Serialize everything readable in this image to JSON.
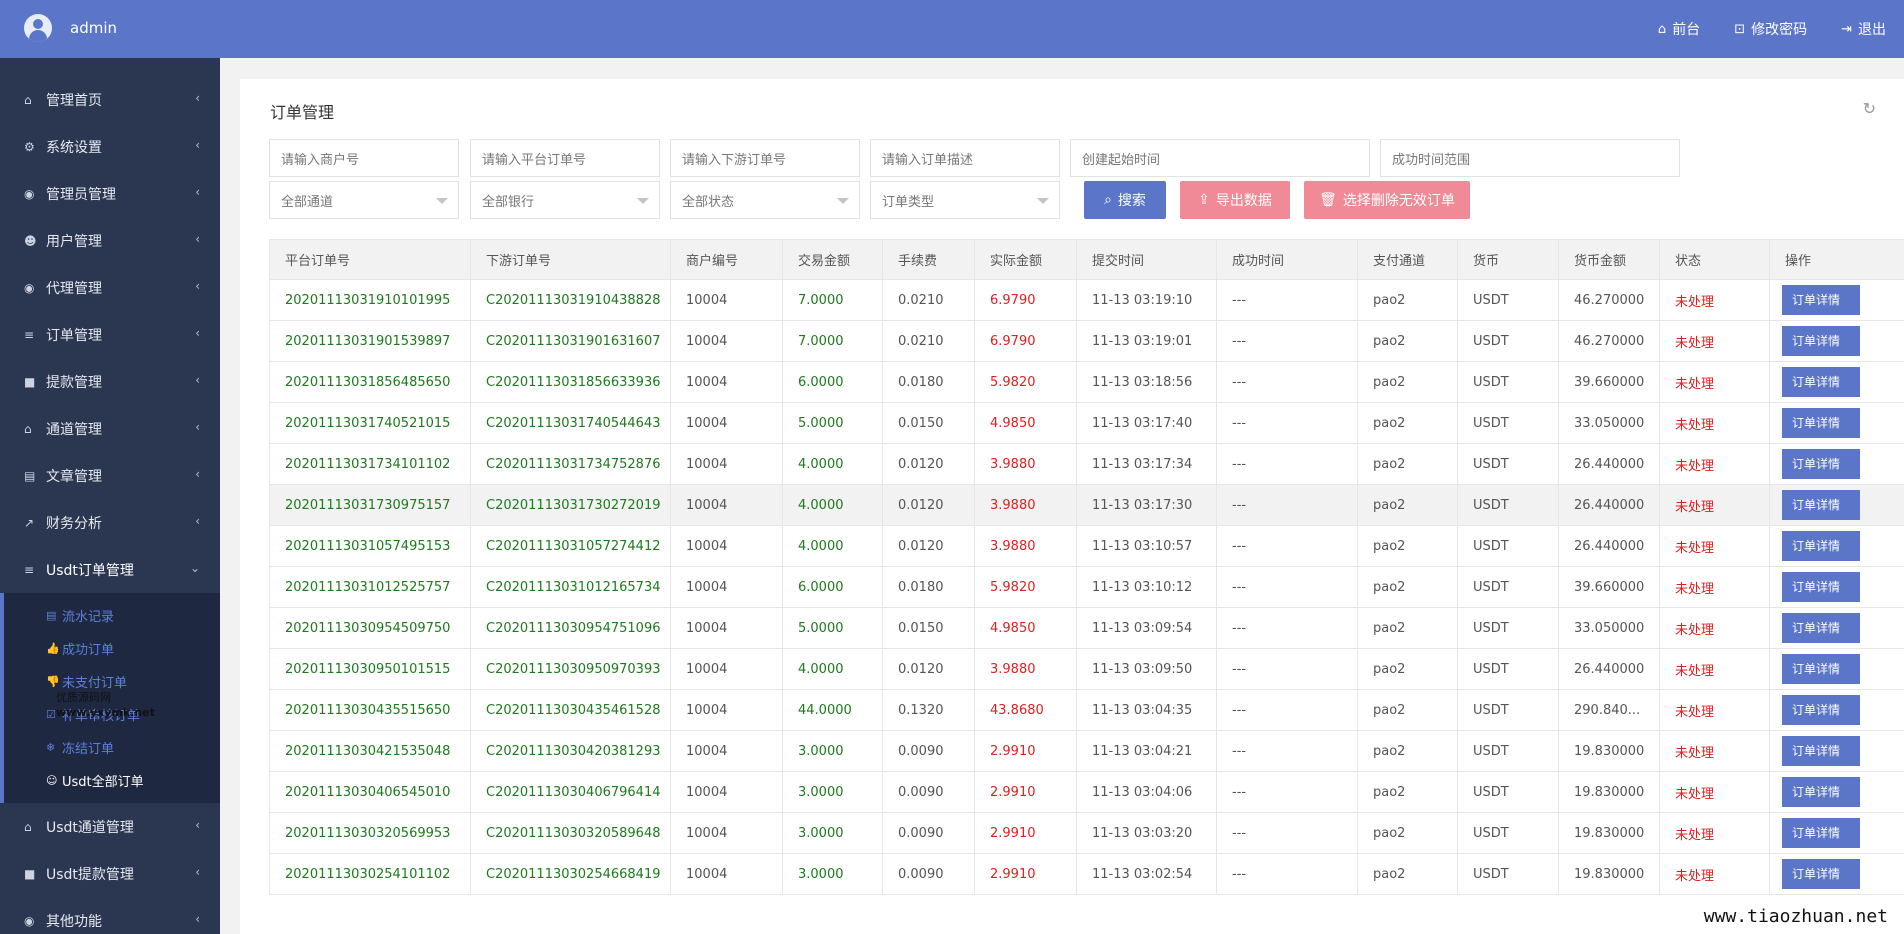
{
  "topbar": {
    "username": "admin",
    "links": [
      {
        "icon": "home-icon",
        "glyph": "⌂",
        "label": "前台"
      },
      {
        "icon": "lock-icon",
        "glyph": "🔒",
        "label": "修改密码"
      },
      {
        "icon": "logout-icon",
        "glyph": "⇥",
        "label": "退出"
      }
    ]
  },
  "sidebar": {
    "items": [
      {
        "icon": "home-icon",
        "glyph": "⌂",
        "label": "管理首页"
      },
      {
        "icon": "gears-icon",
        "glyph": "⚙",
        "label": "系统设置"
      },
      {
        "icon": "user-circle-icon",
        "glyph": "◉",
        "label": "管理员管理"
      },
      {
        "icon": "users-icon",
        "glyph": "☻",
        "label": "用户管理"
      },
      {
        "icon": "user-circle-icon",
        "glyph": "◉",
        "label": "代理管理"
      },
      {
        "icon": "list-icon",
        "glyph": "≡",
        "label": "订单管理"
      },
      {
        "icon": "lock-icon",
        "glyph": "■",
        "label": "提款管理"
      },
      {
        "icon": "bank-icon",
        "glyph": "⌂",
        "label": "通道管理"
      },
      {
        "icon": "book-icon",
        "glyph": "▤",
        "label": "文章管理"
      },
      {
        "icon": "chart-icon",
        "glyph": "↗",
        "label": "财务分析"
      }
    ],
    "open_item": {
      "icon": "list-icon",
      "glyph": "≡",
      "label": "Usdt订单管理"
    },
    "submenu": [
      {
        "icon": "list-alt-icon",
        "glyph": "▤",
        "label": "流水记录"
      },
      {
        "icon": "thumbs-up-icon",
        "glyph": "👍",
        "label": "成功订单"
      },
      {
        "icon": "thumbs-down-icon",
        "glyph": "👎",
        "label": "未支付订单"
      },
      {
        "icon": "check-square-icon",
        "glyph": "☑",
        "label": "补单审核订单"
      },
      {
        "icon": "snowflake-icon",
        "glyph": "❄",
        "label": "冻结订单"
      },
      {
        "icon": "circle-icon",
        "glyph": "☺",
        "label": "Usdt全部订单"
      }
    ],
    "items_after": [
      {
        "icon": "bank-icon",
        "glyph": "⌂",
        "label": "Usdt通道管理"
      },
      {
        "icon": "lock-icon",
        "glyph": "■",
        "label": "Usdt提款管理"
      },
      {
        "icon": "user-circle-icon",
        "glyph": "◉",
        "label": "其他功能"
      }
    ],
    "watermark_a": "优质源码网",
    "watermark_b": "www.yxymk.net"
  },
  "panel": {
    "title": "订单管理",
    "filters": {
      "merchant_placeholder": "请输入商户号",
      "platform_order_placeholder": "请输入平台订单号",
      "downstream_order_placeholder": "请输入下游订单号",
      "order_desc_placeholder": "请输入订单描述",
      "created_time_placeholder": "创建起始时间",
      "success_time_placeholder": "成功时间范围",
      "channel_select": "全部通道",
      "bank_select": "全部银行",
      "status_select": "全部状态",
      "type_select": "订单类型"
    },
    "buttons": {
      "search": "搜索",
      "export": "导出数据",
      "delete_invalid": "选择删除无效订单"
    },
    "columns": [
      "平台订单号",
      "下游订单号",
      "商户编号",
      "交易金额",
      "手续费",
      "实际金额",
      "提交时间",
      "成功时间",
      "支付通道",
      "货币",
      "货币金额",
      "状态",
      "操作"
    ],
    "op_label": "订单详情",
    "rows": [
      [
        "20201113031910101995",
        "C20201113031910438828",
        "10004",
        "7.0000",
        "0.0210",
        "6.9790",
        "11-13 03:19:10",
        "---",
        "pao2",
        "USDT",
        "46.270000",
        "未处理"
      ],
      [
        "20201113031901539897",
        "C20201113031901631607",
        "10004",
        "7.0000",
        "0.0210",
        "6.9790",
        "11-13 03:19:01",
        "---",
        "pao2",
        "USDT",
        "46.270000",
        "未处理"
      ],
      [
        "20201113031856485650",
        "C20201113031856633936",
        "10004",
        "6.0000",
        "0.0180",
        "5.9820",
        "11-13 03:18:56",
        "---",
        "pao2",
        "USDT",
        "39.660000",
        "未处理"
      ],
      [
        "20201113031740521015",
        "C20201113031740544643",
        "10004",
        "5.0000",
        "0.0150",
        "4.9850",
        "11-13 03:17:40",
        "---",
        "pao2",
        "USDT",
        "33.050000",
        "未处理"
      ],
      [
        "20201113031734101102",
        "C20201113031734752876",
        "10004",
        "4.0000",
        "0.0120",
        "3.9880",
        "11-13 03:17:34",
        "---",
        "pao2",
        "USDT",
        "26.440000",
        "未处理"
      ],
      [
        "20201113031730975157",
        "C20201113031730272019",
        "10004",
        "4.0000",
        "0.0120",
        "3.9880",
        "11-13 03:17:30",
        "---",
        "pao2",
        "USDT",
        "26.440000",
        "未处理"
      ],
      [
        "20201113031057495153",
        "C20201113031057274412",
        "10004",
        "4.0000",
        "0.0120",
        "3.9880",
        "11-13 03:10:57",
        "---",
        "pao2",
        "USDT",
        "26.440000",
        "未处理"
      ],
      [
        "20201113031012525757",
        "C20201113031012165734",
        "10004",
        "6.0000",
        "0.0180",
        "5.9820",
        "11-13 03:10:12",
        "---",
        "pao2",
        "USDT",
        "39.660000",
        "未处理"
      ],
      [
        "20201113030954509750",
        "C20201113030954751096",
        "10004",
        "5.0000",
        "0.0150",
        "4.9850",
        "11-13 03:09:54",
        "---",
        "pao2",
        "USDT",
        "33.050000",
        "未处理"
      ],
      [
        "20201113030950101515",
        "C20201113030950970393",
        "10004",
        "4.0000",
        "0.0120",
        "3.9880",
        "11-13 03:09:50",
        "---",
        "pao2",
        "USDT",
        "26.440000",
        "未处理"
      ],
      [
        "20201113030435515650",
        "C20201113030435461528",
        "10004",
        "44.0000",
        "0.1320",
        "43.8680",
        "11-13 03:04:35",
        "---",
        "pao2",
        "USDT",
        "290.840...",
        "未处理"
      ],
      [
        "20201113030421535048",
        "C20201113030420381293",
        "10004",
        "3.0000",
        "0.0090",
        "2.9910",
        "11-13 03:04:21",
        "---",
        "pao2",
        "USDT",
        "19.830000",
        "未处理"
      ],
      [
        "20201113030406545010",
        "C20201113030406796414",
        "10004",
        "3.0000",
        "0.0090",
        "2.9910",
        "11-13 03:04:06",
        "---",
        "pao2",
        "USDT",
        "19.830000",
        "未处理"
      ],
      [
        "20201113030320569953",
        "C20201113030320589648",
        "10004",
        "3.0000",
        "0.0090",
        "2.9910",
        "11-13 03:03:20",
        "---",
        "pao2",
        "USDT",
        "19.830000",
        "未处理"
      ],
      [
        "20201113030254101102",
        "C20201113030254668419",
        "10004",
        "3.0000",
        "0.0090",
        "2.9910",
        "11-13 03:02:54",
        "---",
        "pao2",
        "USDT",
        "19.830000",
        "未处理"
      ]
    ]
  },
  "site_watermark": "www.tiaozhuan.net",
  "colors": {
    "accent": "#5b76c8",
    "sidebar": "#2b3651",
    "danger_btn": "#ef8a96",
    "green_text": "#1d7a1d",
    "red_text": "#e02020"
  }
}
